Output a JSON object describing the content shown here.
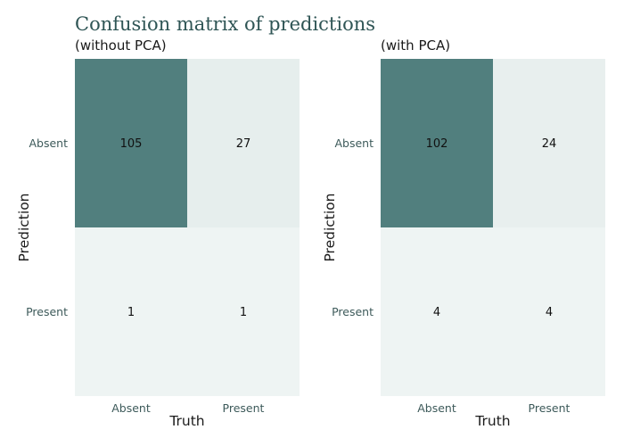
{
  "title": "Confusion matrix of predictions",
  "colors": {
    "high": "#517f7e",
    "mid": "#cddcdb",
    "low": "#eef4f3",
    "title": "#2f5555",
    "tick": "#3d5a5a"
  },
  "chart_data": [
    {
      "type": "heatmap",
      "subtitle": "(without PCA)",
      "xlabel": "Truth",
      "ylabel": "Prediction",
      "x_categories": [
        "Absent",
        "Present"
      ],
      "y_categories": [
        "Absent",
        "Present"
      ],
      "values": [
        [
          105,
          27
        ],
        [
          1,
          1
        ]
      ],
      "legend": "none"
    },
    {
      "type": "heatmap",
      "subtitle": "(with PCA)",
      "xlabel": "Truth",
      "ylabel": "Prediction",
      "x_categories": [
        "Absent",
        "Present"
      ],
      "y_categories": [
        "Absent",
        "Present"
      ],
      "values": [
        [
          102,
          24
        ],
        [
          4,
          4
        ]
      ],
      "legend": "none"
    }
  ]
}
